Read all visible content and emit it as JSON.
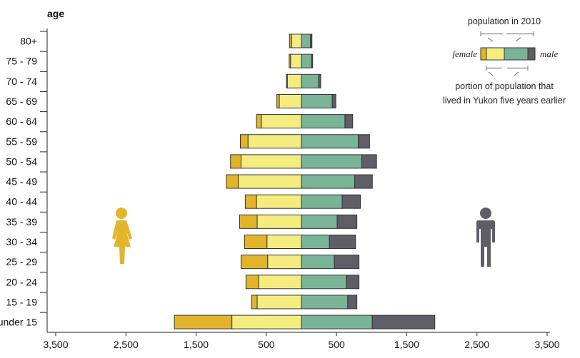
{
  "chart_data": {
    "type": "bar",
    "subtype": "population-pyramid",
    "title": "",
    "ylabel": "age",
    "xlim": [
      -3500,
      3500
    ],
    "x_tick_values": [
      -3500,
      -2500,
      -1500,
      -500,
      500,
      1500,
      2500,
      3500
    ],
    "x_tick_labels": [
      "3,500",
      "2,500",
      "1,500",
      "500",
      "500",
      "1,500",
      "2,500",
      "3,500"
    ],
    "categories": [
      "80+",
      "75 - 79",
      "70 - 74",
      "65 - 69",
      "60 - 64",
      "55 - 59",
      "50 - 54",
      "45 - 49",
      "40 - 44",
      "35 - 39",
      "30 - 34",
      "25 - 29",
      "20 - 24",
      "15 - 19",
      "under 15"
    ],
    "female_total": [
      170,
      175,
      215,
      350,
      640,
      870,
      1010,
      1070,
      800,
      880,
      810,
      860,
      790,
      710,
      1810
    ],
    "female_lived_yukon": [
      140,
      155,
      200,
      315,
      570,
      760,
      860,
      900,
      640,
      630,
      490,
      480,
      610,
      630,
      990
    ],
    "male_total": [
      150,
      160,
      275,
      490,
      730,
      970,
      1070,
      1010,
      840,
      790,
      770,
      820,
      820,
      790,
      1900
    ],
    "male_lived_yukon": [
      130,
      145,
      245,
      440,
      620,
      810,
      860,
      760,
      580,
      510,
      400,
      470,
      640,
      660,
      1010
    ],
    "grid": false,
    "colors": {
      "female_lived": "#f5ec80",
      "female_moved": "#e2b42b",
      "male_lived": "#79b398",
      "male_moved": "#5f5d66",
      "female_icon": "#e4b42a",
      "male_icon": "#5f5d66"
    }
  },
  "legend": {
    "top_text": "population in 2010",
    "female_label": "female",
    "male_label": "male",
    "bottom_line1": "portion of population that",
    "bottom_line2": "lived in Yukon five years earlier"
  },
  "icons": {
    "female": "female-person-icon",
    "male": "male-person-icon"
  }
}
